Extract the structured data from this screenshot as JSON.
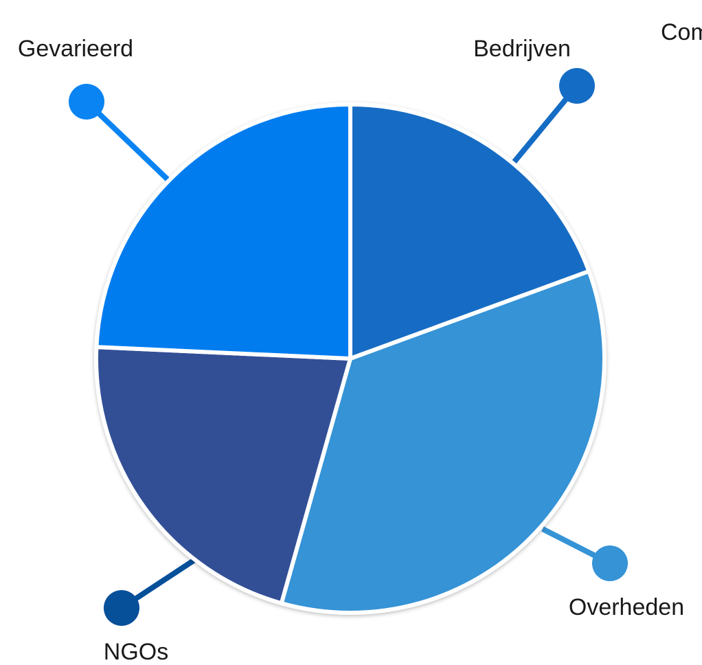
{
  "chart_data": {
    "type": "pie",
    "title": "",
    "clipped_text": "Com",
    "categories": [
      "Bedrijven",
      "Overheden",
      "NGOs",
      "Gevarieerd"
    ],
    "values": [
      20,
      36,
      22,
      25
    ],
    "unit": "",
    "colors": {
      "Bedrijven": "#156cc4",
      "Overheden": "#3593d6",
      "NGOs": "#314f96",
      "Gevarieerd": "#037cef"
    },
    "marker_colors": {
      "Bedrijven": "#156cc4",
      "Overheden": "#3593d6",
      "NGOs": "#064f99",
      "Gevarieerd": "#0a84f2"
    },
    "legend": "none",
    "grid": false,
    "start": "12-o'clock",
    "direction": "clockwise"
  }
}
